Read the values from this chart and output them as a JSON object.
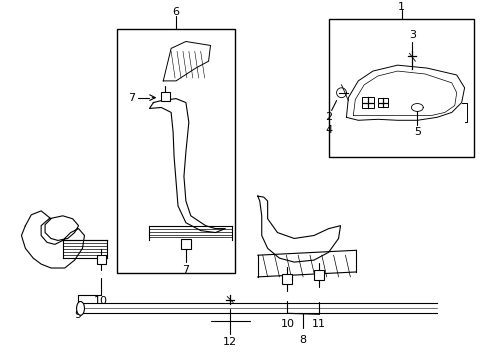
{
  "bg_color": "#ffffff",
  "line_color": "#000000",
  "fig_width": 4.89,
  "fig_height": 3.6,
  "dpi": 100,
  "label_fontsize": 8.0
}
